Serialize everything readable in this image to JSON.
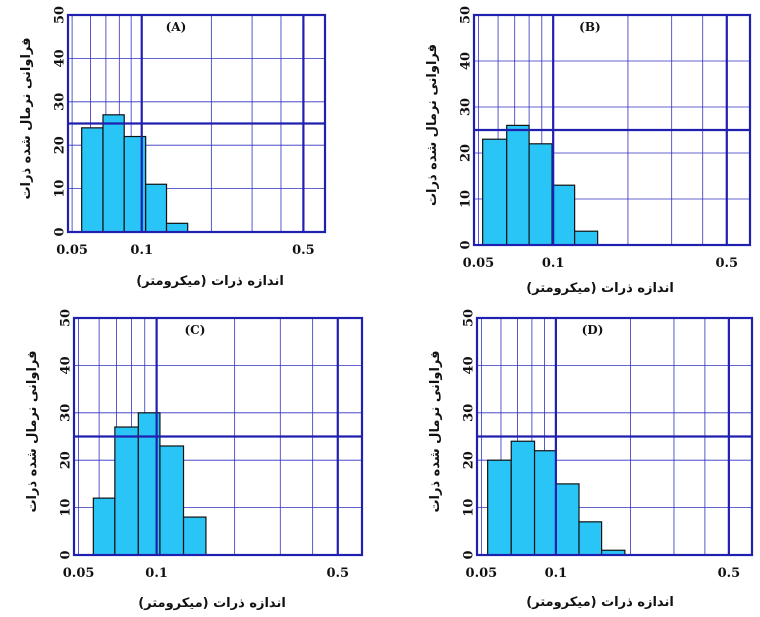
{
  "chart_data": [
    {
      "type": "histogram",
      "title": "(A)",
      "xlabel": "اندازه ذرات (میکرومتر)",
      "ylabel": "فراوانی نرمال شده ذرات",
      "bins": [
        0.055,
        0.068,
        0.084,
        0.104,
        0.128,
        0.158
      ],
      "values": [
        24,
        27,
        22,
        11,
        2
      ],
      "xlim": [
        0.048,
        0.62
      ],
      "ylim": [
        0,
        50
      ],
      "xticks": [
        0.05,
        0.1,
        0.5
      ],
      "yticks": [
        0,
        10,
        20,
        30,
        40,
        50
      ],
      "x_log": true,
      "grid": true,
      "minor_xgrid": [
        0.06,
        0.07,
        0.08,
        0.09,
        0.2,
        0.3,
        0.4
      ],
      "major_lines": {
        "x": [
          0.1,
          0.5
        ],
        "y": 25
      },
      "color": "#29c5f6"
    },
    {
      "type": "histogram",
      "title": "(B)",
      "xlabel": "اندازه ذرات (میکرومتر)",
      "ylabel": "فراوانی نرمال شده ذرات",
      "bins": [
        0.052,
        0.065,
        0.08,
        0.099,
        0.122,
        0.151
      ],
      "values": [
        23,
        26,
        22,
        13,
        3
      ],
      "xlim": [
        0.048,
        0.62
      ],
      "ylim": [
        0,
        50
      ],
      "xticks": [
        0.05,
        0.1,
        0.5
      ],
      "yticks": [
        0,
        10,
        20,
        30,
        40,
        50
      ],
      "x_log": true,
      "grid": true,
      "minor_xgrid": [
        0.06,
        0.07,
        0.08,
        0.09,
        0.2,
        0.3,
        0.4
      ],
      "major_lines": {
        "x": [
          0.1,
          0.5
        ],
        "y": 25
      },
      "color": "#29c5f6"
    },
    {
      "type": "histogram",
      "title": "(C)",
      "xlabel": "اندازه ذرات (میکرومتر)",
      "ylabel": "فراوانی نرمال شده ذرات",
      "bins": [
        0.057,
        0.069,
        0.085,
        0.103,
        0.127,
        0.155
      ],
      "values": [
        12,
        27,
        30,
        23,
        8
      ],
      "xlim": [
        0.048,
        0.62
      ],
      "ylim": [
        0,
        50
      ],
      "xticks": [
        0.05,
        0.1,
        0.5
      ],
      "yticks": [
        0,
        10,
        20,
        30,
        40,
        50
      ],
      "x_log": true,
      "grid": true,
      "minor_xgrid": [
        0.06,
        0.07,
        0.08,
        0.09,
        0.2,
        0.3,
        0.4
      ],
      "major_lines": {
        "x": [
          0.1,
          0.5
        ],
        "y": 25
      },
      "color": "#29c5f6"
    },
    {
      "type": "histogram",
      "title": "(D)",
      "xlabel": "اندازه ذرات (میکرومتر)",
      "ylabel": "فراوانی نرمال شده ذرات",
      "bins": [
        0.053,
        0.066,
        0.082,
        0.1,
        0.124,
        0.153,
        0.19
      ],
      "values": [
        20,
        24,
        22,
        15,
        7,
        1
      ],
      "xlim": [
        0.048,
        0.62
      ],
      "ylim": [
        0,
        50
      ],
      "xticks": [
        0.05,
        0.1,
        0.5
      ],
      "yticks": [
        0,
        10,
        20,
        30,
        40,
        50
      ],
      "x_log": true,
      "grid": true,
      "minor_xgrid": [
        0.06,
        0.07,
        0.08,
        0.09,
        0.2,
        0.3,
        0.4
      ],
      "major_lines": {
        "x": [
          0.1,
          0.5
        ],
        "y": 25
      },
      "color": "#29c5f6"
    }
  ]
}
